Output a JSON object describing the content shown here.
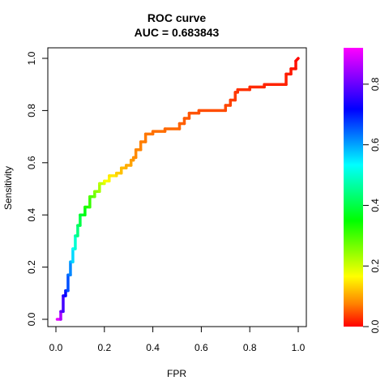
{
  "chart_data": {
    "type": "line",
    "title": "ROC curve",
    "subtitle": "AUC = 0.683843",
    "xlabel": "FPR",
    "ylabel": "Sensitivity",
    "xlim": [
      0,
      1
    ],
    "ylim": [
      0,
      1
    ],
    "x_ticks": [
      "0.0",
      "0.2",
      "0.4",
      "0.6",
      "0.8",
      "1.0"
    ],
    "y_ticks": [
      "0.0",
      "0.2",
      "0.4",
      "0.6",
      "0.8",
      "1.0"
    ],
    "grid": false,
    "legend": "none",
    "series": [
      {
        "x": [
          0.005,
          0.02,
          0.02,
          0.03,
          0.03,
          0.04,
          0.04,
          0.05,
          0.05,
          0.06,
          0.06,
          0.07,
          0.07,
          0.08,
          0.08,
          0.09,
          0.09,
          0.1,
          0.1,
          0.12,
          0.12,
          0.14,
          0.14,
          0.16,
          0.16,
          0.18,
          0.18,
          0.2,
          0.2,
          0.22,
          0.22,
          0.25,
          0.25,
          0.27,
          0.27,
          0.29,
          0.29,
          0.31,
          0.31,
          0.32,
          0.32,
          0.33,
          0.33,
          0.35,
          0.35,
          0.37,
          0.37,
          0.4,
          0.4,
          0.45,
          0.45,
          0.51,
          0.51,
          0.53,
          0.53,
          0.55,
          0.55,
          0.59,
          0.59,
          0.7,
          0.7,
          0.72,
          0.72,
          0.74,
          0.74,
          0.75,
          0.75,
          0.8,
          0.8,
          0.86,
          0.86,
          0.95,
          0.95,
          0.97,
          0.97,
          0.99,
          0.99,
          1.0
        ],
        "y": [
          0.0,
          0.0,
          0.03,
          0.03,
          0.09,
          0.09,
          0.11,
          0.11,
          0.17,
          0.17,
          0.22,
          0.22,
          0.27,
          0.27,
          0.32,
          0.32,
          0.36,
          0.36,
          0.4,
          0.4,
          0.43,
          0.43,
          0.47,
          0.47,
          0.49,
          0.49,
          0.52,
          0.52,
          0.53,
          0.53,
          0.55,
          0.55,
          0.56,
          0.56,
          0.58,
          0.58,
          0.59,
          0.59,
          0.61,
          0.61,
          0.62,
          0.62,
          0.65,
          0.65,
          0.68,
          0.68,
          0.71,
          0.71,
          0.72,
          0.72,
          0.73,
          0.73,
          0.75,
          0.75,
          0.77,
          0.77,
          0.79,
          0.79,
          0.8,
          0.8,
          0.82,
          0.82,
          0.84,
          0.84,
          0.87,
          0.87,
          0.88,
          0.88,
          0.89,
          0.89,
          0.9,
          0.9,
          0.94,
          0.94,
          0.96,
          0.96,
          0.99,
          1.0
        ],
        "threshold": [
          0.9,
          0.85,
          0.8,
          0.77,
          0.74,
          0.72,
          0.69,
          0.66,
          0.64,
          0.62,
          0.59,
          0.56,
          0.53,
          0.5,
          0.47,
          0.44,
          0.42,
          0.4,
          0.38,
          0.36,
          0.33,
          0.31,
          0.29,
          0.27,
          0.25,
          0.23,
          0.21,
          0.19,
          0.17,
          0.16,
          0.15,
          0.14,
          0.13,
          0.12,
          0.115,
          0.11,
          0.105,
          0.1,
          0.095,
          0.09,
          0.085,
          0.08,
          0.078,
          0.075,
          0.072,
          0.07,
          0.068,
          0.066,
          0.064,
          0.062,
          0.06,
          0.058,
          0.056,
          0.054,
          0.052,
          0.05,
          0.048,
          0.046,
          0.044,
          0.042,
          0.04,
          0.038,
          0.036,
          0.034,
          0.032,
          0.03,
          0.028,
          0.026,
          0.024,
          0.022,
          0.02,
          0.018,
          0.016,
          0.014,
          0.012,
          0.01,
          0.005,
          0.0
        ]
      }
    ],
    "colorbar": {
      "range": [
        0,
        0.92
      ],
      "ticks": [
        "0.0",
        "0.2",
        "0.4",
        "0.6",
        "0.8"
      ],
      "palette": [
        "#ff0000",
        "#ff8000",
        "#ffff00",
        "#00ff00",
        "#00ffff",
        "#0000ff",
        "#ff00ff"
      ]
    }
  }
}
